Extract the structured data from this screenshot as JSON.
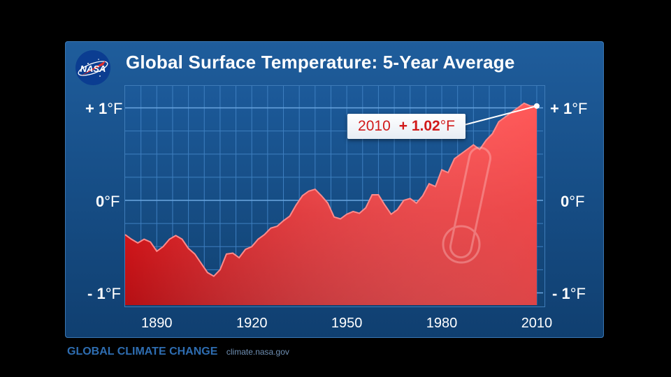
{
  "header": {
    "logo_text": "NASA",
    "title": "Global Surface Temperature: 5-Year Average"
  },
  "yticks": [
    {
      "num": "+ 1",
      "unit": "°F",
      "value": 1
    },
    {
      "num": "0",
      "unit": "°F",
      "value": 0
    },
    {
      "num": "- 1",
      "unit": "°F",
      "value": -1
    }
  ],
  "callout": {
    "year": "2010",
    "value": "+ 1.02",
    "unit": "°F"
  },
  "footer": {
    "brand": "GLOBAL CLIMATE CHANGE",
    "url": "climate.nasa.gov"
  },
  "colors": {
    "panel": "#1a5590",
    "area_fill": "#e0191d",
    "area_top": "#ff5a5a",
    "text": "#ffffff",
    "callout_text": "#d11a1a",
    "footer_brand": "#2e6db1"
  },
  "chart_data": {
    "type": "area",
    "title": "Global Surface Temperature: 5-Year Average",
    "xlabel": "",
    "ylabel": "",
    "xlim": [
      1880,
      2012
    ],
    "ylim": [
      -1.15,
      1.2
    ],
    "xticks": [
      1890,
      1920,
      1950,
      1980,
      2010
    ],
    "yticks": [
      -1,
      0,
      1
    ],
    "grid": true,
    "series": [
      {
        "x": [
          1880,
          1882,
          1884,
          1886,
          1888,
          1890,
          1892,
          1894,
          1896,
          1898,
          1900,
          1902,
          1904,
          1906,
          1908,
          1910,
          1912,
          1914,
          1916,
          1918,
          1920,
          1922,
          1924,
          1926,
          1928,
          1930,
          1932,
          1934,
          1936,
          1938,
          1940,
          1942,
          1944,
          1946,
          1948,
          1950,
          1952,
          1954,
          1956,
          1958,
          1960,
          1962,
          1964,
          1966,
          1968,
          1970,
          1972,
          1974,
          1976,
          1978,
          1980,
          1982,
          1984,
          1986,
          1988,
          1990,
          1992,
          1994,
          1996,
          1998,
          2000,
          2002,
          2004,
          2006,
          2008,
          2010
        ],
        "values": [
          -0.37,
          -0.42,
          -0.46,
          -0.42,
          -0.45,
          -0.55,
          -0.5,
          -0.42,
          -0.38,
          -0.42,
          -0.52,
          -0.58,
          -0.68,
          -0.78,
          -0.82,
          -0.75,
          -0.58,
          -0.57,
          -0.62,
          -0.53,
          -0.5,
          -0.42,
          -0.37,
          -0.3,
          -0.28,
          -0.22,
          -0.17,
          -0.05,
          0.05,
          0.1,
          0.12,
          0.05,
          -0.03,
          -0.18,
          -0.2,
          -0.15,
          -0.12,
          -0.14,
          -0.08,
          0.06,
          0.06,
          -0.05,
          -0.15,
          -0.1,
          0.0,
          0.02,
          -0.03,
          0.05,
          0.18,
          0.15,
          0.33,
          0.3,
          0.45,
          0.5,
          0.55,
          0.6,
          0.55,
          0.65,
          0.72,
          0.85,
          0.9,
          0.95,
          1.0,
          1.05,
          1.02,
          1.02
        ]
      }
    ],
    "annotations": [
      {
        "x": 2010,
        "y": 1.02,
        "label": "2010  + 1.02°F"
      }
    ]
  }
}
